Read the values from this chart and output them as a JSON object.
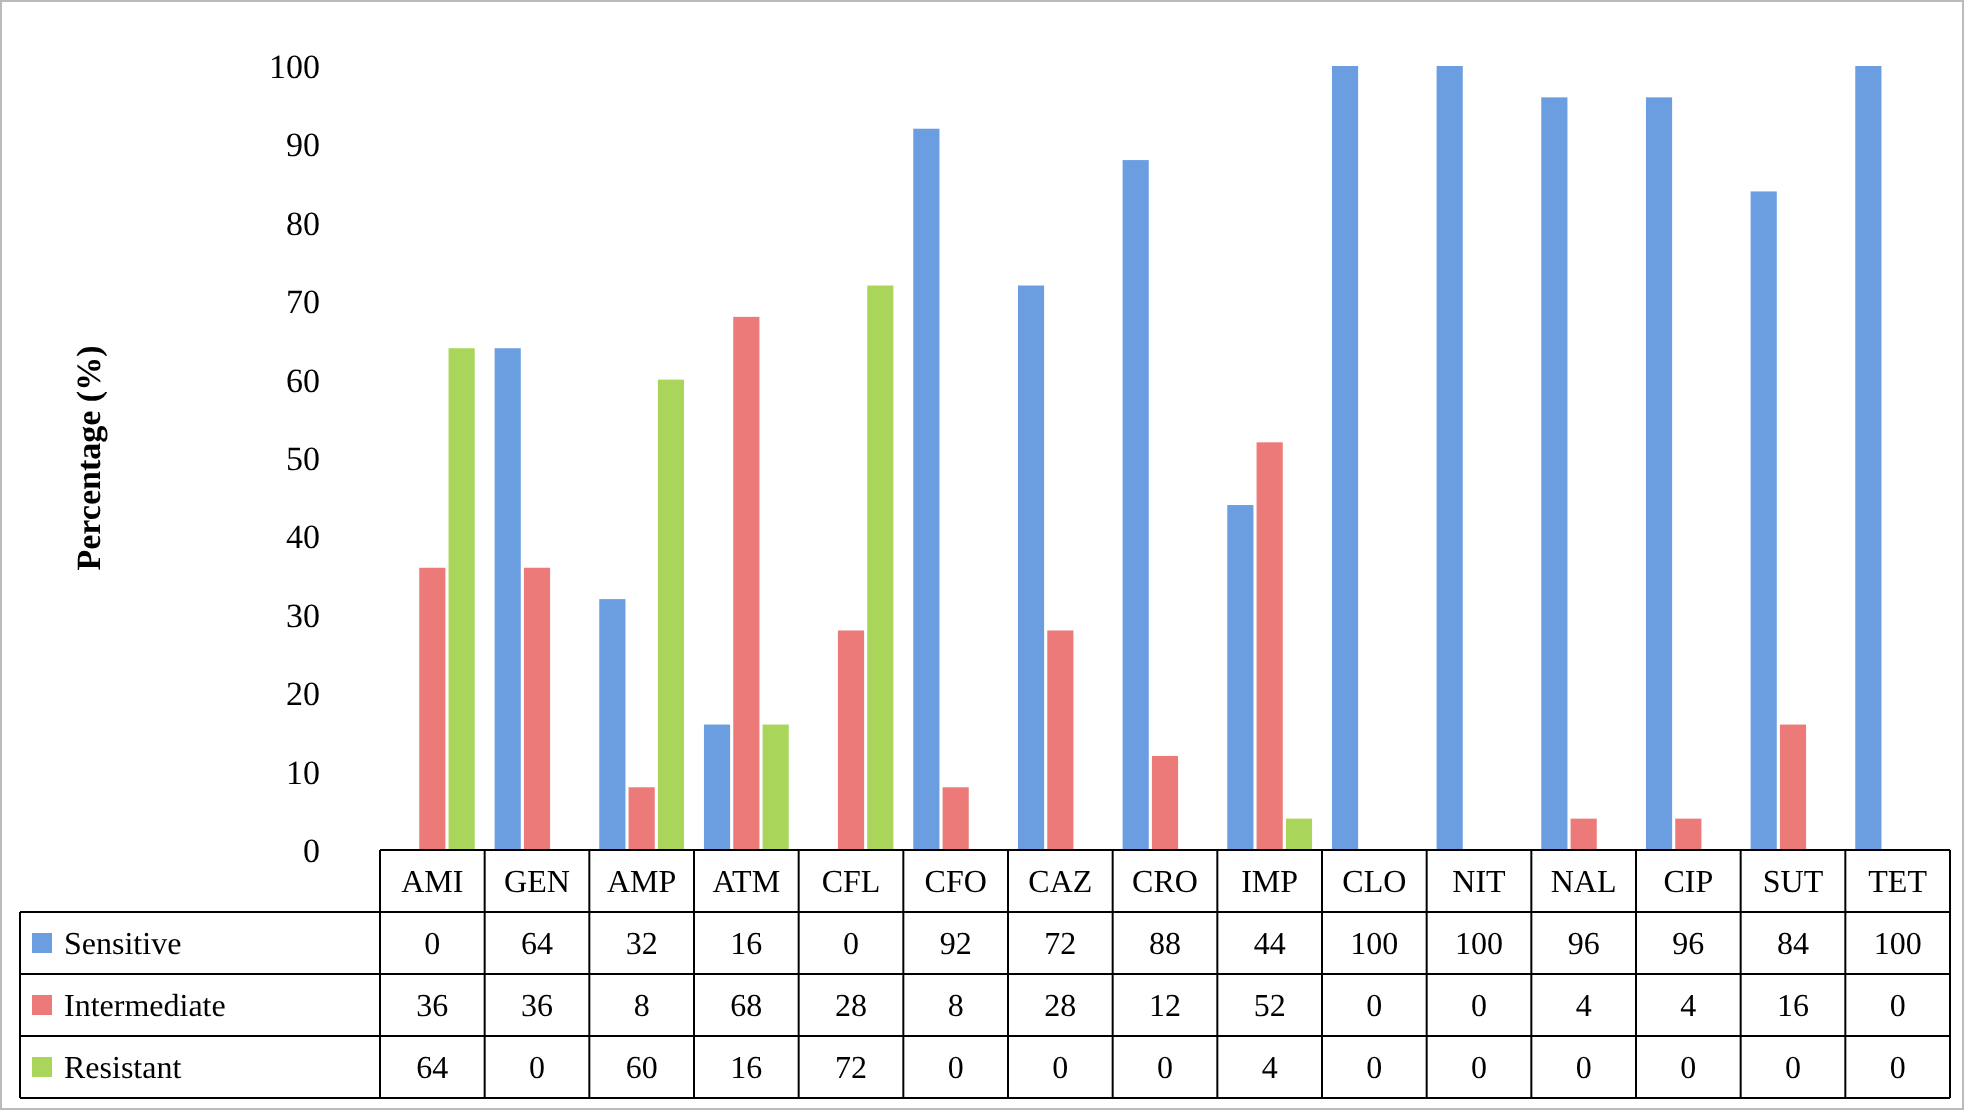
{
  "chart_data": {
    "type": "bar",
    "ylabel": "Percentage  (%)",
    "categories": [
      "AMI",
      "GEN",
      "AMP",
      "ATM",
      "CFL",
      "CFO",
      "CAZ",
      "CRO",
      "IMP",
      "CLO",
      "NIT",
      "NAL",
      "CIP",
      "SUT",
      "TET"
    ],
    "series": [
      {
        "name": "Sensitive",
        "color": "#6a9ee0",
        "values": [
          0,
          64,
          32,
          16,
          0,
          92,
          72,
          88,
          44,
          100,
          100,
          96,
          96,
          84,
          100
        ]
      },
      {
        "name": "Intermediate",
        "color": "#ec7a78",
        "values": [
          36,
          36,
          8,
          68,
          28,
          8,
          28,
          12,
          52,
          0,
          0,
          4,
          4,
          16,
          0
        ]
      },
      {
        "name": "Resistant",
        "color": "#a9d65a",
        "values": [
          64,
          0,
          60,
          16,
          72,
          0,
          0,
          0,
          4,
          0,
          0,
          0,
          0,
          0,
          0
        ]
      }
    ],
    "ylim": [
      0,
      100
    ],
    "yticks": [
      0,
      10,
      20,
      30,
      40,
      50,
      60,
      70,
      80,
      90,
      100
    ],
    "grid": false,
    "data_labels": true,
    "legend": "bottom"
  }
}
